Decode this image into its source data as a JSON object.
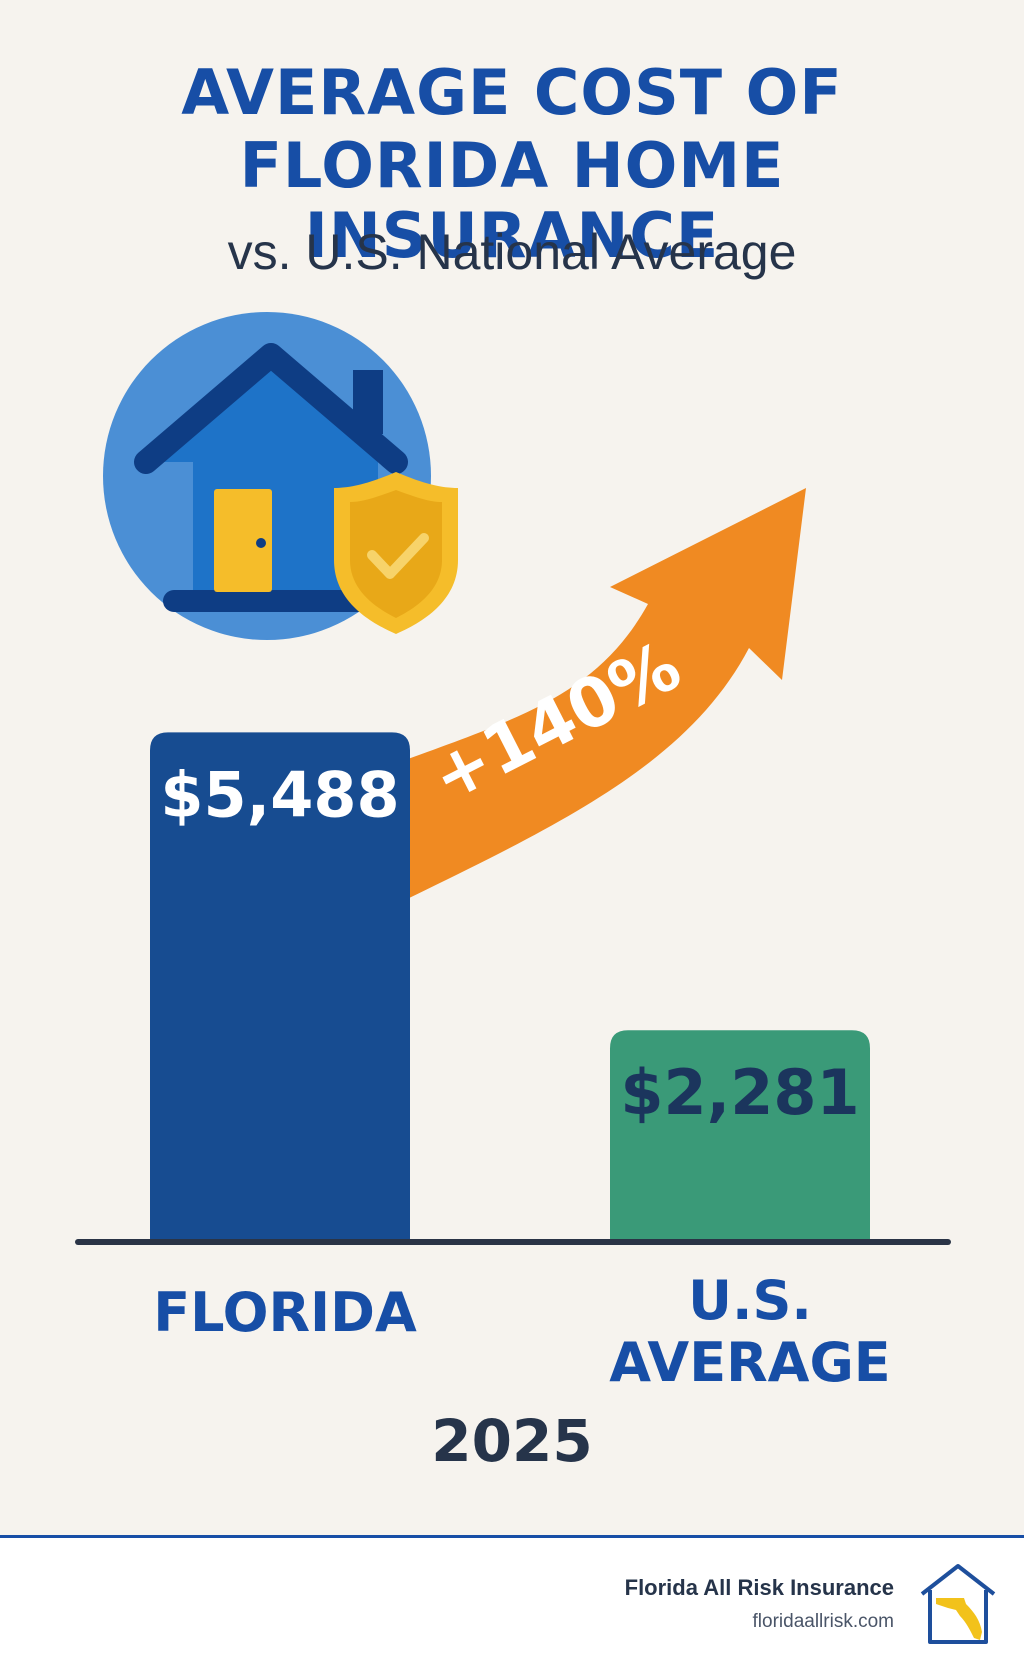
{
  "header": {
    "title_line1": "AVERAGE COST OF",
    "title_line2": "FLORIDA HOME INSURANCE",
    "subtitle": "vs. U.S. National Average"
  },
  "chart_data": {
    "type": "bar",
    "categories": [
      "FLORIDA",
      "U.S. AVERAGE"
    ],
    "values": [
      5488,
      2281
    ],
    "value_labels": [
      "$5,488",
      "$2,281"
    ],
    "difference_label": "+140%",
    "year": "2025",
    "ylim": [
      0,
      5600
    ],
    "grid": false,
    "legend": "none",
    "colors": {
      "florida_bar": "#174c91",
      "us_bar": "#3a9a78",
      "arrow": "#f08a22",
      "baseline": "#2a3446",
      "florida_value_text": "#ffffff",
      "us_value_text": "#1b355d"
    }
  },
  "icons": {
    "main": "house-shield-icon",
    "logo": "florida-house-logo-icon"
  },
  "footer": {
    "brand_name": "Florida All Risk Insurance",
    "brand_url": "floridaallrisk.com"
  },
  "colors": {
    "background": "#f6f3ee",
    "title": "#174ea6",
    "subtitle": "#26344a",
    "footer_background": "#ffffff",
    "footer_rule": "#174ea6"
  }
}
